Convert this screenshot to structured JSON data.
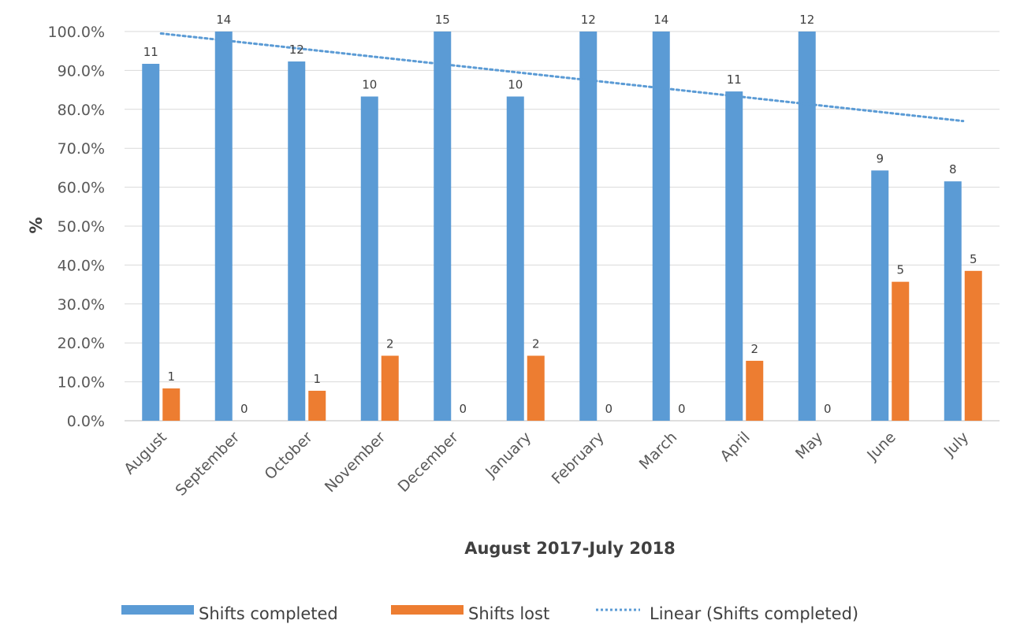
{
  "chart_data": {
    "type": "bar",
    "title": "",
    "xlabel": "August 2017-July 2018",
    "ylabel": "%",
    "ylim": [
      0,
      100
    ],
    "yticks": [
      "0.0%",
      "10.0%",
      "20.0%",
      "30.0%",
      "40.0%",
      "50.0%",
      "60.0%",
      "70.0%",
      "80.0%",
      "90.0%",
      "100.0%"
    ],
    "categories": [
      "August",
      "September",
      "October",
      "November",
      "December",
      "January",
      "February",
      "March",
      "April",
      "May",
      "June",
      "July"
    ],
    "series": [
      {
        "name": "Shifts completed",
        "color": "#5b9bd5",
        "values": [
          91.7,
          100,
          92.3,
          83.3,
          100,
          83.3,
          100,
          100,
          84.6,
          100,
          64.3,
          61.5
        ],
        "labels": [
          "11",
          "14",
          "12",
          "10",
          "15",
          "10",
          "12",
          "14",
          "11",
          "12",
          "9",
          "8"
        ]
      },
      {
        "name": "Shifts lost",
        "color": "#ed7d31",
        "values": [
          8.3,
          0,
          7.7,
          16.7,
          0,
          16.7,
          0,
          0,
          15.4,
          0,
          35.7,
          38.5
        ],
        "labels": [
          "1",
          "0",
          "1",
          "2",
          "0",
          "2",
          "0",
          "0",
          "2",
          "0",
          "5",
          "5"
        ]
      }
    ],
    "trendline": {
      "name": "Linear (Shifts completed)",
      "of_series": "Shifts completed",
      "style": "dotted",
      "color": "#5b9bd5",
      "start": 99.5,
      "end": 77.0
    },
    "grid": true,
    "legend": "bottom"
  }
}
